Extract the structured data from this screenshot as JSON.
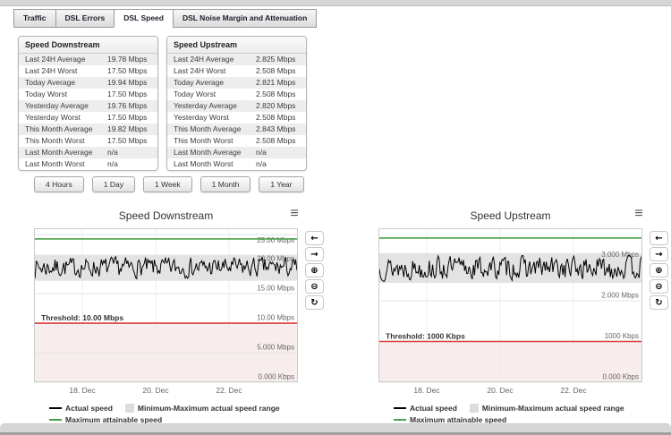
{
  "tabs": [
    {
      "label": "Traffic",
      "active": false
    },
    {
      "label": "DSL Errors",
      "active": false
    },
    {
      "label": "DSL Speed",
      "active": true
    },
    {
      "label": "DSL Noise Margin and Attenuation",
      "active": false
    }
  ],
  "tables": [
    {
      "title": "Speed Downstream",
      "rows": [
        [
          "Last 24H Average",
          "19.78 Mbps"
        ],
        [
          "Last 24H Worst",
          "17.50 Mbps"
        ],
        [
          "Today Average",
          "19.94 Mbps"
        ],
        [
          "Today Worst",
          "17.50 Mbps"
        ],
        [
          "Yesterday Average",
          "19.76 Mbps"
        ],
        [
          "Yesterday Worst",
          "17.50 Mbps"
        ],
        [
          "This Month Average",
          "19.82 Mbps"
        ],
        [
          "This Month Worst",
          "17.50 Mbps"
        ],
        [
          "Last Month Average",
          "n/a"
        ],
        [
          "Last Month Worst",
          "n/a"
        ]
      ]
    },
    {
      "title": "Speed Upstream",
      "rows": [
        [
          "Last 24H Average",
          "2.825 Mbps"
        ],
        [
          "Last 24H Worst",
          "2.508 Mbps"
        ],
        [
          "Today Average",
          "2.821 Mbps"
        ],
        [
          "Today Worst",
          "2.508 Mbps"
        ],
        [
          "Yesterday Average",
          "2.820 Mbps"
        ],
        [
          "Yesterday Worst",
          "2.508 Mbps"
        ],
        [
          "This Month Average",
          "2.843 Mbps"
        ],
        [
          "This Month Worst",
          "2.508 Mbps"
        ],
        [
          "Last Month Average",
          "n/a"
        ],
        [
          "Last Month Worst",
          "n/a"
        ]
      ]
    }
  ],
  "range_buttons": [
    "4 Hours",
    "1 Day",
    "1 Week",
    "1 Month",
    "1 Year"
  ],
  "menu_icon": "≡",
  "chart_toolbar": [
    {
      "name": "pan-left",
      "glyph": "←"
    },
    {
      "name": "pan-right",
      "glyph": "→"
    },
    {
      "name": "zoom-in",
      "glyph": "⊕"
    },
    {
      "name": "zoom-out",
      "glyph": "⊖"
    },
    {
      "name": "reset-zoom",
      "glyph": "↻"
    }
  ],
  "colors": {
    "green": "#4ba04b",
    "red": "#dd3c3c",
    "band": "#e3e3e3",
    "threshold_fill": "#f8eded",
    "gridline": "#e4e4e4"
  },
  "chart_data": [
    {
      "type": "line",
      "title": "Speed Downstream",
      "ylim": [
        0,
        26.1
      ],
      "y_ticks": [
        {
          "value": 25,
          "label": "25.00 Mbps"
        },
        {
          "value": 20,
          "label": "20.00 Mbps"
        },
        {
          "value": 15,
          "label": "15.00 Mbps"
        },
        {
          "value": 10,
          "label": "10.00 Mbps"
        },
        {
          "value": 5,
          "label": "5.000 Mbps"
        },
        {
          "value": 0,
          "label": "0.000 Kbps"
        }
      ],
      "x_ticks": [
        {
          "label": "18. Dec",
          "pos": 54
        },
        {
          "label": "20. Dec",
          "pos": 136
        },
        {
          "label": "22. Dec",
          "pos": 218
        }
      ],
      "series": [
        {
          "name": "Actual speed",
          "type": "noisy_line",
          "color": "#000000",
          "mean": 19.8,
          "min": 17.4,
          "max": 21.5,
          "points": 240,
          "seed": 7
        },
        {
          "name": "Minimum-Maximum actual speed range",
          "type": "band",
          "color": "#e3e3e3",
          "low": 17.2,
          "high": 21.6
        },
        {
          "name": "Maximum attainable speed",
          "type": "hline",
          "color": "#4ba04b",
          "value": 24.3
        }
      ],
      "threshold": {
        "label": "Threshold: 10.00 Mbps",
        "value": 10,
        "line_color": "#dd3c3c",
        "fill_color": "#f8eded"
      },
      "legend": [
        {
          "label": "Actual speed",
          "marker": "line",
          "color": "#000000"
        },
        {
          "label": "Minimum-Maximum actual speed range",
          "marker": "box",
          "color": "#dcdcdc"
        },
        {
          "label": "Maximum attainable speed",
          "marker": "line",
          "color": "#4ba04b"
        }
      ]
    },
    {
      "type": "line",
      "title": "Speed Upstream",
      "ylim": [
        0,
        3.78
      ],
      "y_ticks": [
        {
          "value": 3,
          "label": "3.000 Mbps"
        },
        {
          "value": 2,
          "label": "2.000 Mbps"
        },
        {
          "value": 1,
          "label": "1000 Kbps"
        },
        {
          "value": 0,
          "label": "0.000 Kbps"
        }
      ],
      "x_ticks": [
        {
          "label": "18. Dec",
          "pos": 54
        },
        {
          "label": "20. Dec",
          "pos": 136
        },
        {
          "label": "22. Dec",
          "pos": 218
        }
      ],
      "series": [
        {
          "name": "Actual speed",
          "type": "noisy_line",
          "color": "#000000",
          "mean": 2.82,
          "min": 2.46,
          "max": 3.15,
          "points": 240,
          "seed": 13
        },
        {
          "name": "Minimum-Maximum actual speed range",
          "type": "band",
          "color": "#e3e3e3",
          "low": 2.44,
          "high": 3.17
        },
        {
          "name": "Maximum attainable speed",
          "type": "hline",
          "color": "#4ba04b",
          "value": 3.54
        }
      ],
      "threshold": {
        "label": "Threshold: 1000 Kbps",
        "value": 1,
        "line_color": "#dd3c3c",
        "fill_color": "#f8eded"
      },
      "legend": [
        {
          "label": "Actual speed",
          "marker": "line",
          "color": "#000000"
        },
        {
          "label": "Minimum-Maximum actual speed range",
          "marker": "box",
          "color": "#dcdcdc"
        },
        {
          "label": "Maximum attainable speed",
          "marker": "line",
          "color": "#4ba04b"
        }
      ]
    }
  ]
}
